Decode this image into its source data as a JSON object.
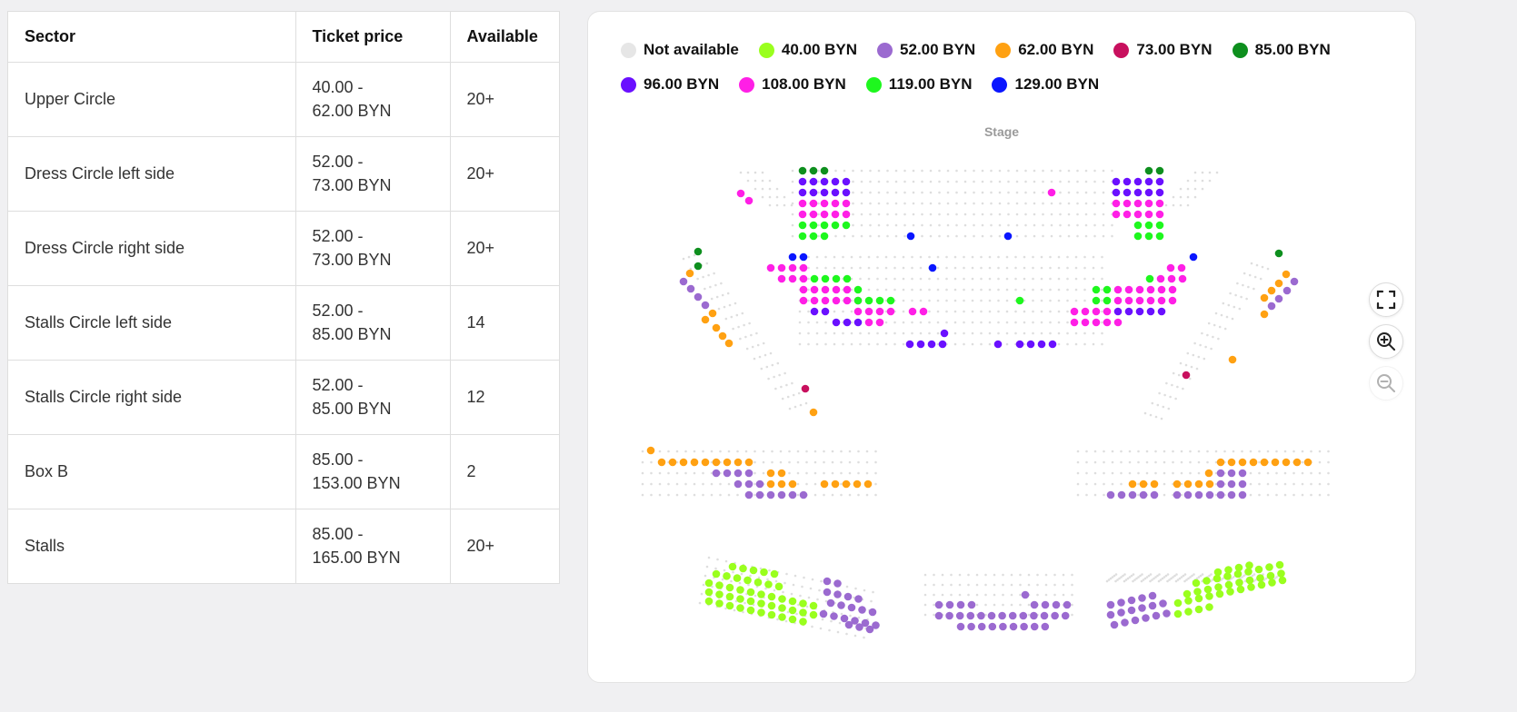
{
  "table": {
    "headers": [
      "Sector",
      "Ticket price",
      "Available"
    ],
    "rows": [
      {
        "sector": "Upper Circle",
        "price_from": "40.00 -",
        "price_to": "62.00 BYN",
        "available": "20+"
      },
      {
        "sector": "Dress Circle left side",
        "price_from": "52.00 -",
        "price_to": "73.00 BYN",
        "available": "20+"
      },
      {
        "sector": "Dress Circle right side",
        "price_from": "52.00 -",
        "price_to": "73.00 BYN",
        "available": "20+"
      },
      {
        "sector": "Stalls Circle left side",
        "price_from": "52.00 -",
        "price_to": "85.00 BYN",
        "available": "14"
      },
      {
        "sector": "Stalls Circle right side",
        "price_from": "52.00 -",
        "price_to": "85.00 BYN",
        "available": "12"
      },
      {
        "sector": "Box B",
        "price_from": "85.00 -",
        "price_to": "153.00 BYN",
        "available": "2"
      },
      {
        "sector": "Stalls",
        "price_from": "85.00 -",
        "price_to": "165.00 BYN",
        "available": "20+"
      }
    ]
  },
  "legend": [
    {
      "label": "Not available",
      "color": "#e6e6e6"
    },
    {
      "label": "40.00 BYN",
      "color": "#9aff1e"
    },
    {
      "label": "52.00 BYN",
      "color": "#9b6ad0"
    },
    {
      "label": "62.00 BYN",
      "color": "#ffa112"
    },
    {
      "label": "73.00 BYN",
      "color": "#c8105e"
    },
    {
      "label": "85.00 BYN",
      "color": "#0e8f1e"
    },
    {
      "label": "96.00 BYN",
      "color": "#6a10ff"
    },
    {
      "label": "108.00 BYN",
      "color": "#ff1fe6"
    },
    {
      "label": "119.00 BYN",
      "color": "#1ef71e"
    },
    {
      "label": "129.00 BYN",
      "color": "#0a16ff"
    }
  ],
  "stage_label": "Stage",
  "controls": {
    "fullscreen_icon": "fullscreen-icon",
    "zoom_in_icon": "zoom-in-icon",
    "zoom_out_icon": "zoom-out-icon"
  }
}
